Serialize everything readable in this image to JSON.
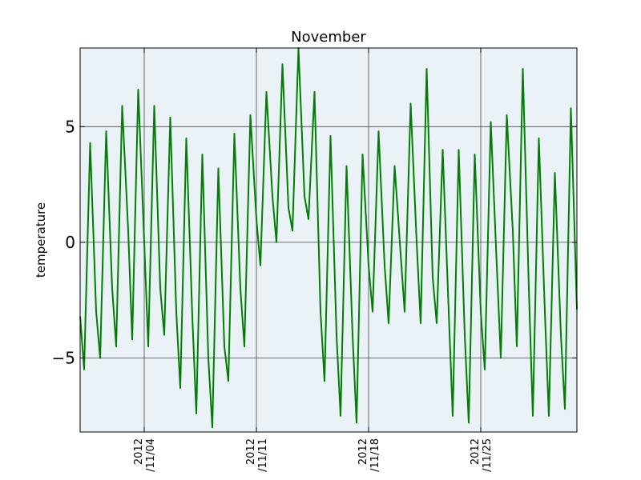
{
  "chart_data": {
    "type": "line",
    "title": "November",
    "xlabel": "",
    "ylabel": "temperature",
    "x_range": [
      "2012-10-31",
      "2012-12-01"
    ],
    "ylim": [
      -8.2,
      8.4
    ],
    "grid": true,
    "plot_background": "#eaf2f8",
    "series_color": "#008000",
    "y_ticks": [
      {
        "value": -5,
        "label": "−5"
      },
      {
        "value": 0,
        "label": "0"
      },
      {
        "value": 5,
        "label": "5"
      }
    ],
    "x_ticks": [
      {
        "value": "2012-11-04",
        "line1": "2012",
        "line2": "/11/04"
      },
      {
        "value": "2012-11-11",
        "line1": "2012",
        "line2": "/11/11"
      },
      {
        "value": "2012-11-18",
        "line1": "2012",
        "line2": "/11/18"
      },
      {
        "value": "2012-11-25",
        "line1": "2012",
        "line2": "/11/25"
      }
    ],
    "series": [
      {
        "values": [
          {
            "x": "2012-10-31T00:00",
            "y": -3.2
          },
          {
            "x": "2012-10-31T06:00",
            "y": -5.5
          },
          {
            "x": "2012-10-31T15:00",
            "y": 4.3
          },
          {
            "x": "2012-11-01T00:00",
            "y": -3.0
          },
          {
            "x": "2012-11-01T06:00",
            "y": -5.0
          },
          {
            "x": "2012-11-01T15:00",
            "y": 4.8
          },
          {
            "x": "2012-11-02T00:00",
            "y": -2.0
          },
          {
            "x": "2012-11-02T06:00",
            "y": -4.5
          },
          {
            "x": "2012-11-02T15:00",
            "y": 5.9
          },
          {
            "x": "2012-11-03T00:00",
            "y": 0.5
          },
          {
            "x": "2012-11-03T06:00",
            "y": -4.2
          },
          {
            "x": "2012-11-03T15:00",
            "y": 6.6
          },
          {
            "x": "2012-11-04T00:00",
            "y": 0.0
          },
          {
            "x": "2012-11-04T06:00",
            "y": -4.5
          },
          {
            "x": "2012-11-04T15:00",
            "y": 5.9
          },
          {
            "x": "2012-11-05T00:00",
            "y": -2.0
          },
          {
            "x": "2012-11-05T06:00",
            "y": -4.0
          },
          {
            "x": "2012-11-05T15:00",
            "y": 5.4
          },
          {
            "x": "2012-11-06T00:00",
            "y": -3.0
          },
          {
            "x": "2012-11-06T06:00",
            "y": -6.3
          },
          {
            "x": "2012-11-06T15:00",
            "y": 4.5
          },
          {
            "x": "2012-11-07T00:00",
            "y": -3.2
          },
          {
            "x": "2012-11-07T06:00",
            "y": -7.4
          },
          {
            "x": "2012-11-07T15:00",
            "y": 3.8
          },
          {
            "x": "2012-11-08T00:00",
            "y": -5.0
          },
          {
            "x": "2012-11-08T06:00",
            "y": -8.0
          },
          {
            "x": "2012-11-08T15:00",
            "y": 3.2
          },
          {
            "x": "2012-11-09T00:00",
            "y": -4.5
          },
          {
            "x": "2012-11-09T06:00",
            "y": -6.0
          },
          {
            "x": "2012-11-09T15:00",
            "y": 4.7
          },
          {
            "x": "2012-11-10T00:00",
            "y": -2.0
          },
          {
            "x": "2012-11-10T06:00",
            "y": -4.5
          },
          {
            "x": "2012-11-10T15:00",
            "y": 5.5
          },
          {
            "x": "2012-11-11T00:00",
            "y": 1.0
          },
          {
            "x": "2012-11-11T06:00",
            "y": -1.0
          },
          {
            "x": "2012-11-11T15:00",
            "y": 6.5
          },
          {
            "x": "2012-11-12T00:00",
            "y": 2.0
          },
          {
            "x": "2012-11-12T06:00",
            "y": 0.0
          },
          {
            "x": "2012-11-12T15:00",
            "y": 7.7
          },
          {
            "x": "2012-11-13T00:00",
            "y": 1.5
          },
          {
            "x": "2012-11-13T06:00",
            "y": 0.5
          },
          {
            "x": "2012-11-13T15:00",
            "y": 8.4
          },
          {
            "x": "2012-11-14T00:00",
            "y": 2.0
          },
          {
            "x": "2012-11-14T06:00",
            "y": 1.0
          },
          {
            "x": "2012-11-14T15:00",
            "y": 6.5
          },
          {
            "x": "2012-11-15T00:00",
            "y": -3.0
          },
          {
            "x": "2012-11-15T06:00",
            "y": -6.0
          },
          {
            "x": "2012-11-15T15:00",
            "y": 4.6
          },
          {
            "x": "2012-11-16T00:00",
            "y": -4.0
          },
          {
            "x": "2012-11-16T06:00",
            "y": -7.5
          },
          {
            "x": "2012-11-16T15:00",
            "y": 3.3
          },
          {
            "x": "2012-11-17T00:00",
            "y": -4.0
          },
          {
            "x": "2012-11-17T06:00",
            "y": -7.8
          },
          {
            "x": "2012-11-17T15:00",
            "y": 3.8
          },
          {
            "x": "2012-11-18T00:00",
            "y": -1.0
          },
          {
            "x": "2012-11-18T06:00",
            "y": -3.0
          },
          {
            "x": "2012-11-18T15:00",
            "y": 4.8
          },
          {
            "x": "2012-11-19T00:00",
            "y": -1.0
          },
          {
            "x": "2012-11-19T06:00",
            "y": -3.5
          },
          {
            "x": "2012-11-19T15:00",
            "y": 3.3
          },
          {
            "x": "2012-11-20T00:00",
            "y": -0.5
          },
          {
            "x": "2012-11-20T06:00",
            "y": -3.0
          },
          {
            "x": "2012-11-20T15:00",
            "y": 6.0
          },
          {
            "x": "2012-11-21T00:00",
            "y": 0.0
          },
          {
            "x": "2012-11-21T06:00",
            "y": -3.5
          },
          {
            "x": "2012-11-21T15:00",
            "y": 7.5
          },
          {
            "x": "2012-11-22T00:00",
            "y": -1.5
          },
          {
            "x": "2012-11-22T06:00",
            "y": -3.5
          },
          {
            "x": "2012-11-22T15:00",
            "y": 4.0
          },
          {
            "x": "2012-11-23T00:00",
            "y": -3.0
          },
          {
            "x": "2012-11-23T06:00",
            "y": -7.5
          },
          {
            "x": "2012-11-23T15:00",
            "y": 4.0
          },
          {
            "x": "2012-11-24T00:00",
            "y": -4.0
          },
          {
            "x": "2012-11-24T06:00",
            "y": -7.8
          },
          {
            "x": "2012-11-24T15:00",
            "y": 3.8
          },
          {
            "x": "2012-11-25T00:00",
            "y": -3.0
          },
          {
            "x": "2012-11-25T06:00",
            "y": -5.5
          },
          {
            "x": "2012-11-25T15:00",
            "y": 5.2
          },
          {
            "x": "2012-11-26T00:00",
            "y": -1.0
          },
          {
            "x": "2012-11-26T06:00",
            "y": -5.0
          },
          {
            "x": "2012-11-26T15:00",
            "y": 5.5
          },
          {
            "x": "2012-11-27T00:00",
            "y": 0.5
          },
          {
            "x": "2012-11-27T06:00",
            "y": -4.5
          },
          {
            "x": "2012-11-27T15:00",
            "y": 7.5
          },
          {
            "x": "2012-11-28T00:00",
            "y": -2.0
          },
          {
            "x": "2012-11-28T06:00",
            "y": -7.5
          },
          {
            "x": "2012-11-28T15:00",
            "y": 4.5
          },
          {
            "x": "2012-11-29T00:00",
            "y": -3.0
          },
          {
            "x": "2012-11-29T06:00",
            "y": -7.5
          },
          {
            "x": "2012-11-29T15:00",
            "y": 3.0
          },
          {
            "x": "2012-11-30T00:00",
            "y": -4.0
          },
          {
            "x": "2012-11-30T06:00",
            "y": -7.2
          },
          {
            "x": "2012-11-30T15:00",
            "y": 5.8
          },
          {
            "x": "2012-12-01T00:00",
            "y": -2.9
          }
        ]
      }
    ]
  }
}
